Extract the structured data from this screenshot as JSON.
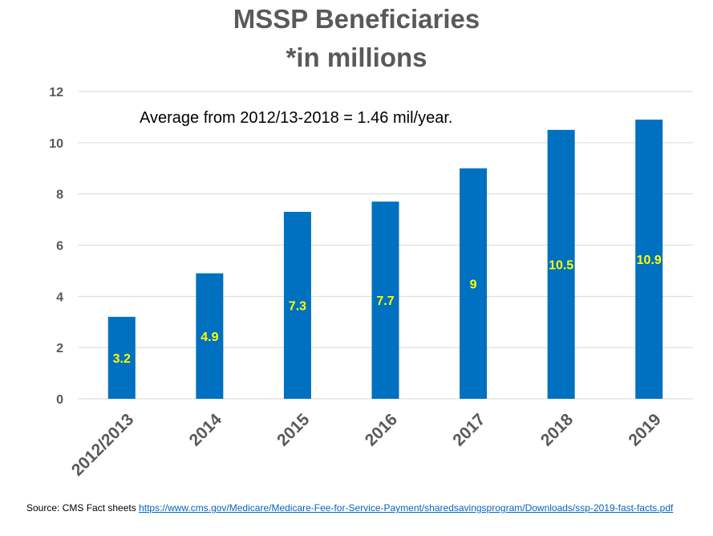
{
  "header": {
    "title_line1": "MSSP Beneficiaries",
    "title_line2": "*in millions"
  },
  "colors": {
    "bar": "#0070c0",
    "data_label": "#ffff00",
    "title": "#595959",
    "axis_text": "#595959",
    "gridline": "#d9d9d9",
    "link": "#0563c1"
  },
  "chart_data": {
    "type": "bar",
    "title": "MSSP Beneficiaries *in millions",
    "categories": [
      "2012/2013",
      "2014",
      "2015",
      "2016",
      "2017",
      "2018",
      "2019"
    ],
    "values": [
      3.2,
      4.9,
      7.3,
      7.7,
      9,
      10.5,
      10.9
    ],
    "data_labels": [
      "3.2",
      "4.9",
      "7.3",
      "7.7",
      "9",
      "10.5",
      "10.9"
    ],
    "ylim": [
      0,
      12
    ],
    "y_ticks": [
      0,
      2,
      4,
      6,
      8,
      10,
      12
    ],
    "grid": true,
    "x_tick_rotation_deg": -45,
    "annotation": "Average from 2012/13-2018 = 1.46 mil/year."
  },
  "footer": {
    "source_prefix": "Source: CMS Fact sheets ",
    "source_link": "https://www.cms.gov/Medicare/Medicare-Fee-for-Service-Payment/sharedsavingsprogram/Downloads/ssp-2019-fast-facts.pdf"
  }
}
